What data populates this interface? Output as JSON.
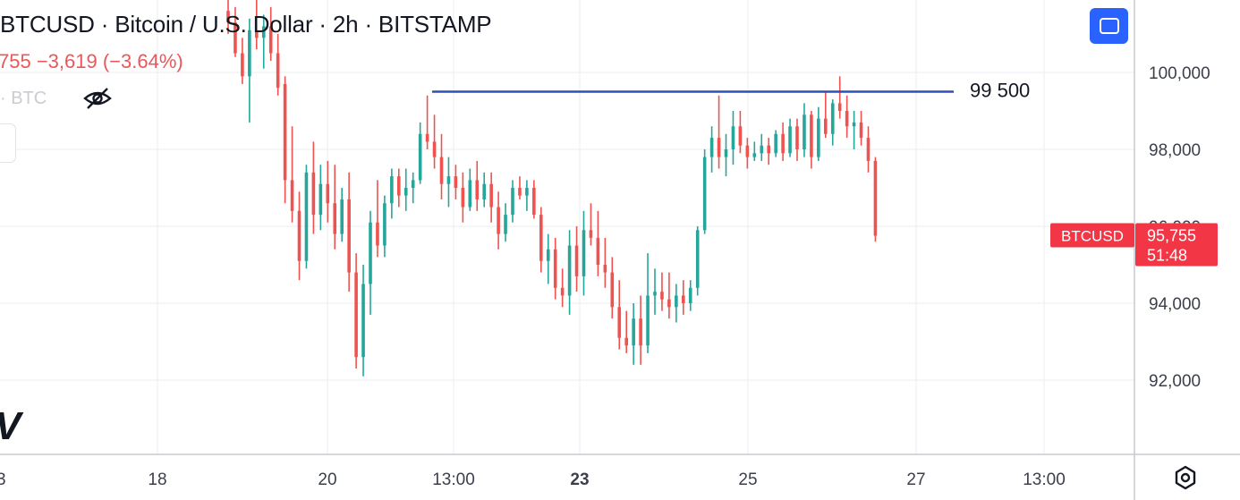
{
  "header": {
    "title": "BTCUSD · Bitcoin / U.S. Dollar · 2h · BITSTAMP",
    "change": "755  −3,619 (−3.64%)",
    "volume_label": "· BTC"
  },
  "colors": {
    "up": "#26a69a",
    "down": "#ef5350",
    "line": "#2f4fb5",
    "grid": "#eef0f3",
    "accent": "#2962ff",
    "price_tag": "#f23645"
  },
  "icons": {
    "fullscreen": "fullscreen-icon",
    "settings": "gear-icon",
    "visibility": "eye-off-icon"
  },
  "chart_data": {
    "type": "candlestick",
    "ylim": [
      90500,
      102000
    ],
    "y_ticks": [
      {
        "value": 100000,
        "label": "100,000"
      },
      {
        "value": 98000,
        "label": "98,000"
      },
      {
        "value": 96000,
        "label": "96,000"
      },
      {
        "value": 94000,
        "label": "94,000"
      },
      {
        "value": 92000,
        "label": "92,000"
      }
    ],
    "x_ticks": [
      {
        "label": "18",
        "bold": false
      },
      {
        "label": "20",
        "bold": false
      },
      {
        "label": "13:00",
        "bold": false
      },
      {
        "label": "23",
        "bold": true
      },
      {
        "label": "25",
        "bold": false
      },
      {
        "label": "27",
        "bold": false
      },
      {
        "label": "13:00",
        "bold": false
      }
    ],
    "horizontal_line": {
      "value": 99500,
      "label": "99 500"
    },
    "last_price": {
      "symbol": "BTCUSD",
      "price": "95,755",
      "countdown": "51:48",
      "value": 95755
    },
    "candles": [
      [
        101600,
        102200,
        101000,
        101300
      ],
      [
        101300,
        101700,
        100400,
        100500
      ],
      [
        100500,
        100900,
        99700,
        99900
      ],
      [
        99900,
        101400,
        98700,
        101100
      ],
      [
        101100,
        101900,
        100600,
        100900
      ],
      [
        100900,
        101500,
        100100,
        101200
      ],
      [
        101200,
        101700,
        100300,
        100500
      ],
      [
        100500,
        101000,
        99400,
        99600
      ],
      [
        99700,
        99900,
        96600,
        97200
      ],
      [
        97200,
        98600,
        96100,
        96400
      ],
      [
        96400,
        96900,
        94600,
        95100
      ],
      [
        95100,
        97600,
        94900,
        97400
      ],
      [
        97400,
        98200,
        95800,
        96300
      ],
      [
        96300,
        97600,
        95900,
        97100
      ],
      [
        97100,
        97700,
        96100,
        96600
      ],
      [
        96600,
        97600,
        95400,
        95800
      ],
      [
        95800,
        97000,
        95600,
        96700
      ],
      [
        96700,
        97400,
        94300,
        94800
      ],
      [
        94800,
        95300,
        92300,
        92600
      ],
      [
        92600,
        95000,
        92100,
        94500
      ],
      [
        94500,
        96400,
        93700,
        96100
      ],
      [
        96100,
        97200,
        95200,
        95500
      ],
      [
        95500,
        96800,
        95200,
        96600
      ],
      [
        96600,
        97500,
        96200,
        97300
      ],
      [
        97300,
        97500,
        96500,
        96800
      ],
      [
        96800,
        97500,
        96400,
        97000
      ],
      [
        97000,
        97400,
        96600,
        97200
      ],
      [
        97200,
        98700,
        97100,
        98400
      ],
      [
        98400,
        99400,
        98000,
        98200
      ],
      [
        98200,
        98900,
        97500,
        97800
      ],
      [
        97800,
        98400,
        96700,
        97100
      ],
      [
        97100,
        97800,
        96500,
        97300
      ],
      [
        97300,
        97600,
        96700,
        97000
      ],
      [
        97000,
        97400,
        96100,
        96500
      ],
      [
        96500,
        97500,
        96400,
        97200
      ],
      [
        97200,
        97700,
        96400,
        96700
      ],
      [
        96700,
        97400,
        96500,
        97100
      ],
      [
        97100,
        97400,
        96100,
        96500
      ],
      [
        96500,
        96900,
        95400,
        95800
      ],
      [
        95800,
        96600,
        95600,
        96300
      ],
      [
        96300,
        97200,
        96100,
        97000
      ],
      [
        97000,
        97300,
        96700,
        96800
      ],
      [
        96800,
        97200,
        96400,
        97000
      ],
      [
        97000,
        97200,
        96200,
        96300
      ],
      [
        96300,
        96500,
        94800,
        95100
      ],
      [
        95100,
        95800,
        94500,
        95400
      ],
      [
        95400,
        95700,
        94100,
        94400
      ],
      [
        94400,
        94900,
        93900,
        94200
      ],
      [
        94200,
        95900,
        93700,
        95500
      ],
      [
        95500,
        96000,
        94300,
        94700
      ],
      [
        94700,
        96400,
        94200,
        95900
      ],
      [
        95900,
        96600,
        95500,
        95700
      ],
      [
        95700,
        96400,
        94700,
        95000
      ],
      [
        95000,
        95700,
        94400,
        94800
      ],
      [
        94800,
        95200,
        93600,
        93900
      ],
      [
        93900,
        94600,
        92800,
        93100
      ],
      [
        93100,
        93800,
        92700,
        92900
      ],
      [
        92900,
        94000,
        92400,
        93600
      ],
      [
        93600,
        94200,
        92400,
        92900
      ],
      [
        92900,
        95300,
        92700,
        94200
      ],
      [
        94200,
        94900,
        93700,
        94300
      ],
      [
        94300,
        94800,
        93800,
        94100
      ],
      [
        94100,
        94800,
        93600,
        93900
      ],
      [
        93900,
        94500,
        93500,
        94200
      ],
      [
        94200,
        94600,
        93700,
        94000
      ],
      [
        94000,
        94600,
        93800,
        94400
      ],
      [
        94400,
        96000,
        94200,
        95900
      ],
      [
        95900,
        98000,
        95800,
        97800
      ],
      [
        97800,
        98600,
        97400,
        98300
      ],
      [
        98300,
        99400,
        97500,
        97800
      ],
      [
        97800,
        98400,
        97300,
        98000
      ],
      [
        98000,
        99000,
        97600,
        98600
      ],
      [
        98600,
        99000,
        97900,
        98100
      ],
      [
        98100,
        98300,
        97500,
        97800
      ],
      [
        97800,
        98200,
        97700,
        97900
      ],
      [
        97900,
        98400,
        97700,
        98100
      ],
      [
        98100,
        98300,
        97600,
        97900
      ],
      [
        97900,
        98500,
        97800,
        98400
      ],
      [
        98400,
        98700,
        97700,
        97900
      ],
      [
        97900,
        98800,
        97800,
        98600
      ],
      [
        98600,
        98800,
        97700,
        98000
      ],
      [
        98000,
        99200,
        97800,
        98900
      ],
      [
        98900,
        99000,
        97500,
        97800
      ],
      [
        97800,
        99100,
        97700,
        98800
      ],
      [
        98800,
        99500,
        98300,
        98400
      ],
      [
        98400,
        99300,
        98100,
        99200
      ],
      [
        99200,
        99900,
        98800,
        99000
      ],
      [
        99000,
        99400,
        98300,
        98600
      ],
      [
        98600,
        99000,
        98000,
        98700
      ],
      [
        98700,
        99000,
        98100,
        98300
      ],
      [
        98300,
        98600,
        97400,
        97700
      ],
      [
        97700,
        97800,
        95600,
        95755
      ]
    ]
  }
}
